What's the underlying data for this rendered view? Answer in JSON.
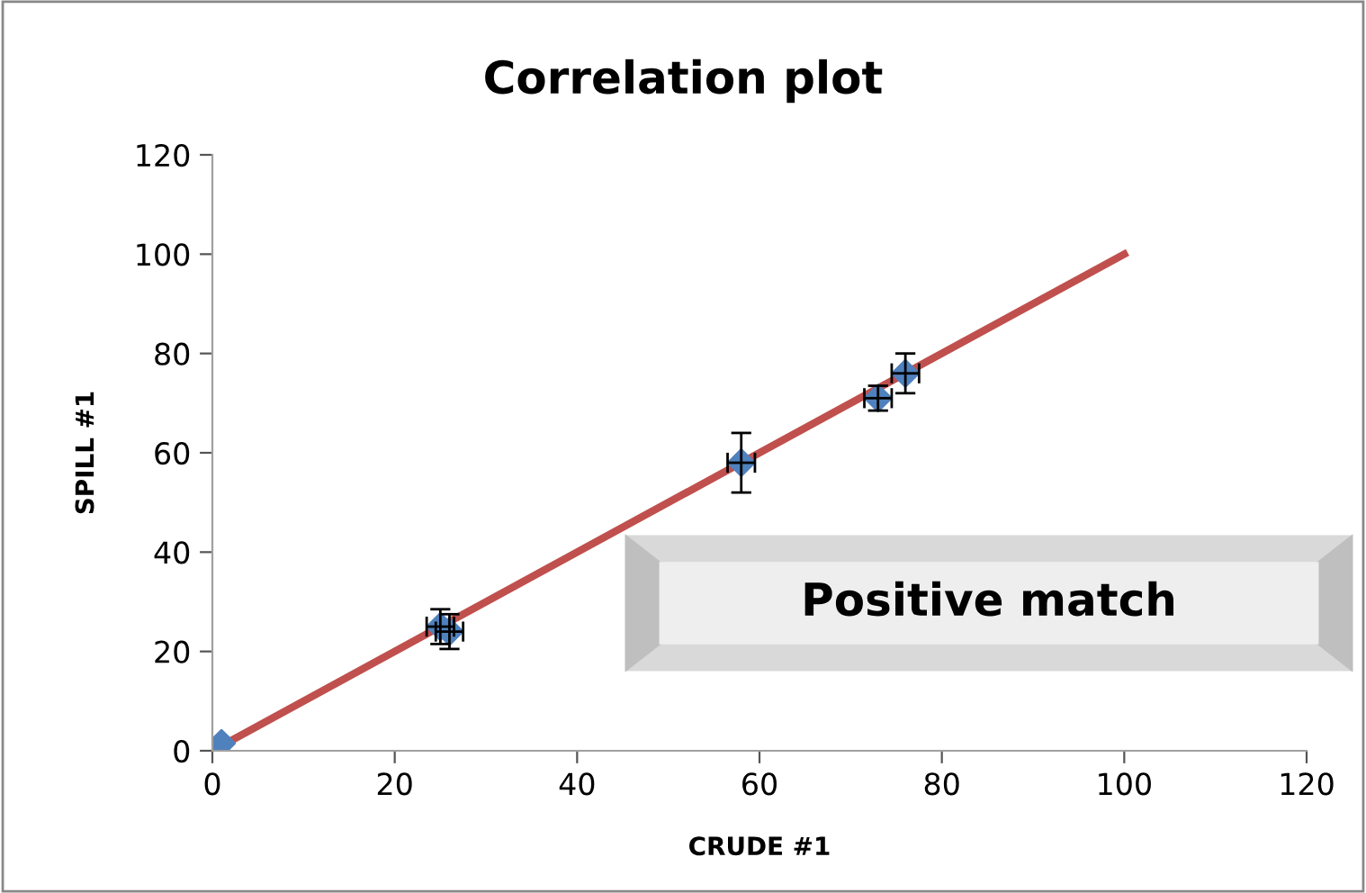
{
  "chart_data": {
    "type": "scatter",
    "title": "Correlation plot",
    "xlabel": "CRUDE #1",
    "ylabel": "SPILL #1",
    "xlim": [
      0,
      120
    ],
    "ylim": [
      0,
      120
    ],
    "xticks": [
      0,
      20,
      40,
      60,
      80,
      100,
      120
    ],
    "yticks": [
      0,
      20,
      40,
      60,
      80,
      100,
      120
    ],
    "grid": false,
    "legend": false,
    "marker": "diamond",
    "annotations": [
      "Positive match"
    ],
    "series": [
      {
        "type": "line",
        "color": "#c0504d",
        "x": [
          1,
          100
        ],
        "values": [
          1,
          100
        ],
        "line_style": "solid",
        "marker": "none"
      },
      {
        "color": "#4f81bd",
        "x": [
          1,
          25,
          26,
          58,
          73,
          76
        ],
        "values": [
          1.5,
          25,
          24,
          58,
          71,
          76
        ],
        "errors": [
          null,
          3.5,
          3.5,
          6,
          2.5,
          4
        ],
        "xerrors": [
          null,
          1.5,
          1.5,
          1.5,
          1.5,
          1.5
        ]
      }
    ]
  }
}
